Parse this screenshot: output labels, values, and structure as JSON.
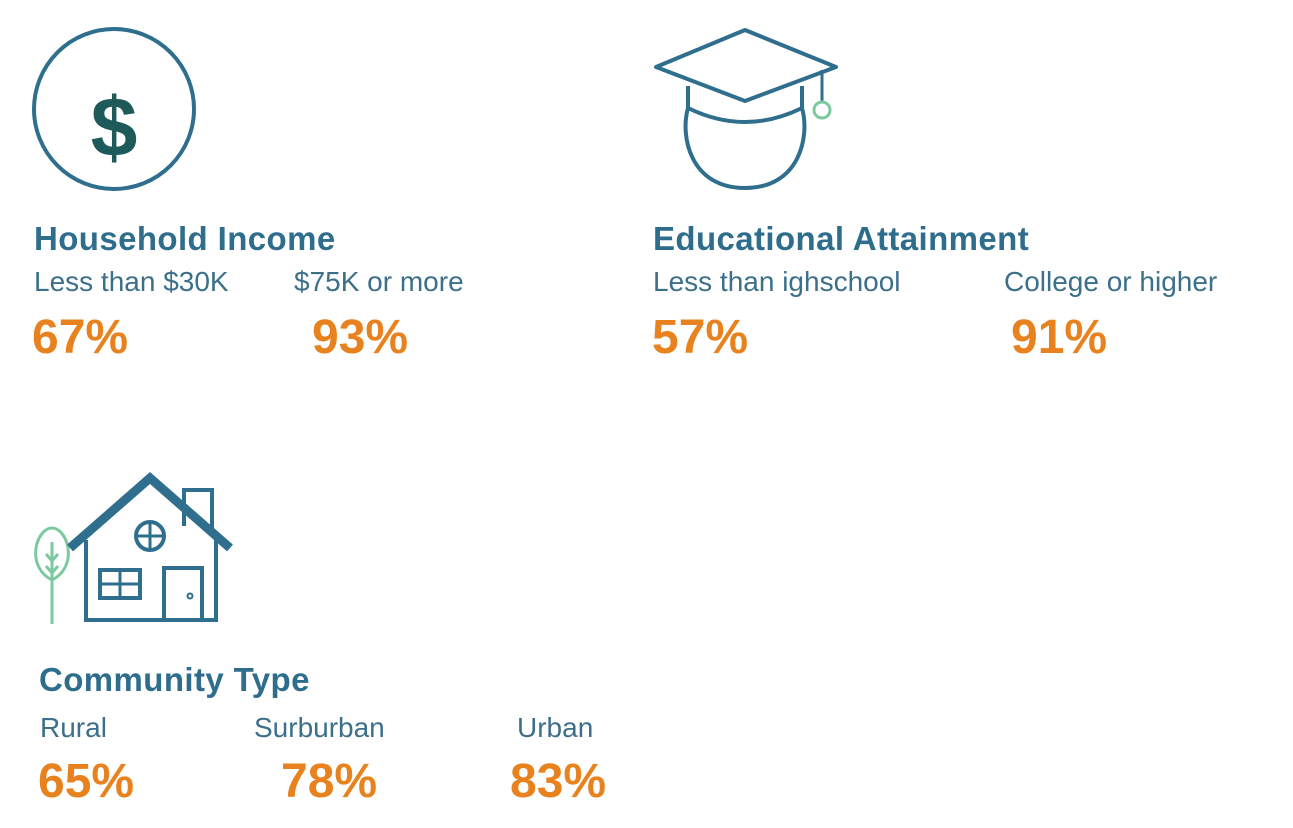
{
  "colors": {
    "title": "#2f6d8d",
    "label": "#3b6f8a",
    "percent": "#e8821e",
    "icon_stroke": "#2f6f8d",
    "icon_dark": "#1f5a5a",
    "icon_green": "#7cc9a0"
  },
  "income": {
    "icon": "dollar-circle-icon",
    "title": "Household Income",
    "groups": [
      {
        "label": "Less than $30K",
        "percent": "67%",
        "value": 67
      },
      {
        "label": "$75K or more",
        "percent": "93%",
        "value": 93
      }
    ]
  },
  "education": {
    "icon": "graduation-cap-icon",
    "title": "Educational Attainment",
    "groups": [
      {
        "label": "Less than ighschool",
        "percent": "57%",
        "value": 57
      },
      {
        "label": "College or higher",
        "percent": "91%",
        "value": 91
      }
    ]
  },
  "community": {
    "icon": "house-icon",
    "title": "Community Type",
    "groups": [
      {
        "label": "Rural",
        "percent": "65%",
        "value": 65
      },
      {
        "label": "Surburban",
        "percent": "78%",
        "value": 78
      },
      {
        "label": "Urban",
        "percent": "83%",
        "value": 83
      }
    ]
  }
}
